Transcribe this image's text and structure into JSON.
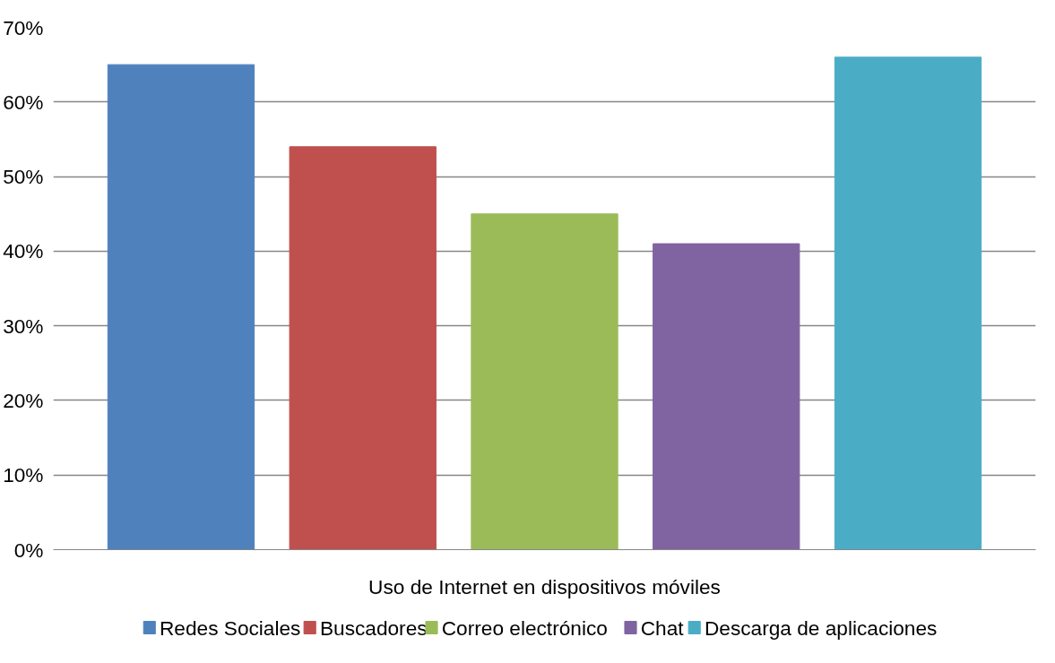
{
  "chart_data": {
    "type": "bar",
    "categories": [
      "Uso de Internet en dispositivos móviles"
    ],
    "series": [
      {
        "name": "Redes Sociales",
        "color": "#4f81bd",
        "values": [
          65
        ]
      },
      {
        "name": "Buscadores",
        "color": "#c0504d",
        "values": [
          54
        ]
      },
      {
        "name": "Correo electrónico",
        "color": "#9bbb59",
        "values": [
          45
        ]
      },
      {
        "name": "Chat",
        "color": "#8064a2",
        "values": [
          41
        ]
      },
      {
        "name": "Descarga de aplicaciones",
        "color": "#4bacc6",
        "values": [
          66
        ]
      }
    ],
    "ylim": [
      0,
      70
    ],
    "yticks": [
      {
        "value": 0,
        "label": "0%"
      },
      {
        "value": 10,
        "label": "10%"
      },
      {
        "value": 20,
        "label": "20%"
      },
      {
        "value": 30,
        "label": "30%"
      },
      {
        "value": 40,
        "label": "40%"
      },
      {
        "value": 50,
        "label": "50%"
      },
      {
        "value": 60,
        "label": "60%"
      },
      {
        "value": 70,
        "label": "70%"
      }
    ],
    "grid": "y",
    "legend": "bottom"
  }
}
